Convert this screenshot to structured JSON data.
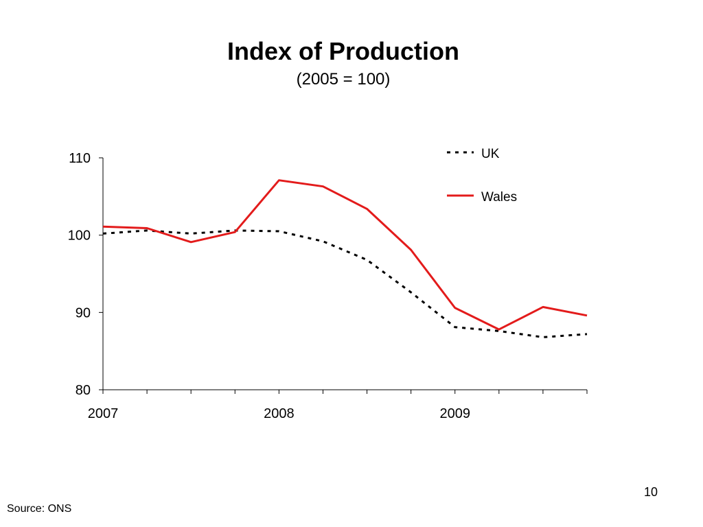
{
  "slide": {
    "page_number": "10",
    "source": "Source: ONS"
  },
  "colors": {
    "uk": "#000000",
    "wales": "#e31b1b",
    "axis": "#000000"
  },
  "chart_data": {
    "type": "line",
    "title": "Index of Production",
    "subtitle": "(2005 = 100)",
    "xlabel": "",
    "ylabel": "",
    "x": [
      "2007 Q1",
      "2007 Q2",
      "2007 Q3",
      "2007 Q4",
      "2008 Q1",
      "2008 Q2",
      "2008 Q3",
      "2008 Q4",
      "2009 Q1",
      "2009 Q2",
      "2009 Q3",
      "2009 Q4"
    ],
    "x_tick_labels": [
      "2007",
      "2008",
      "2009"
    ],
    "ylim": [
      80,
      110
    ],
    "y_ticks": [
      80,
      90,
      100,
      110
    ],
    "grid": false,
    "legend": "top-right",
    "series": [
      {
        "name": "UK",
        "style": "dotted",
        "color": "#000000",
        "values": [
          100.2,
          100.6,
          100.2,
          100.6,
          100.5,
          99.2,
          96.8,
          92.6,
          88.1,
          87.6,
          86.8,
          87.2
        ]
      },
      {
        "name": "Wales",
        "style": "solid",
        "color": "#e31b1b",
        "values": [
          101.1,
          100.9,
          99.1,
          100.4,
          107.1,
          106.3,
          103.4,
          98.1,
          90.6,
          87.8,
          90.7,
          89.6
        ]
      }
    ]
  }
}
